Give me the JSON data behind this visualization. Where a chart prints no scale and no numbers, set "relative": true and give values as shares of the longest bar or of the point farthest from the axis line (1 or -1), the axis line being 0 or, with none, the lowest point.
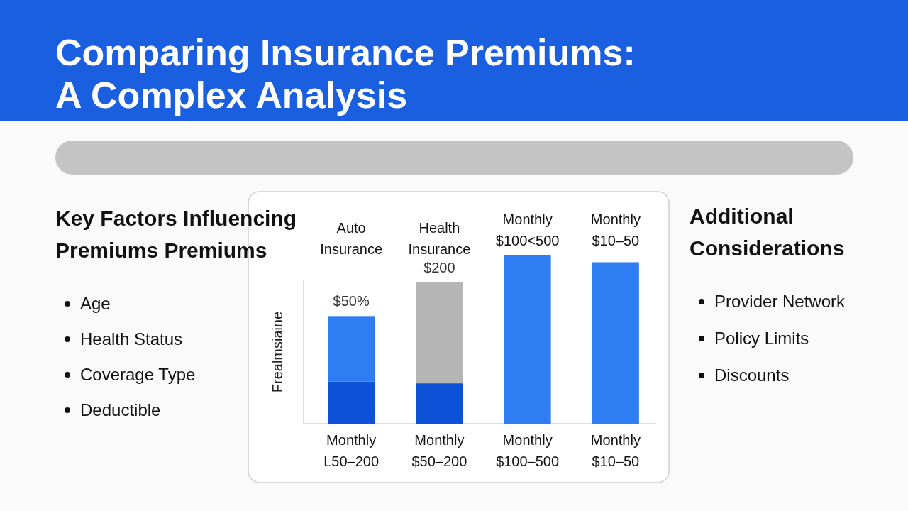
{
  "chart_data": [
    {
      "type": "bar",
      "title": "Comparing Insurance Premiums: A Complex Analysis",
      "ylabel": "Frealmsiaine",
      "stacked": true,
      "relative": true,
      "categories": [
        "Monthly L50–200",
        "Monthly $50–200",
        "Monthly $100–500",
        "Monthly $10–50"
      ],
      "series": [
        {
          "color": "#0d52d6",
          "values": [
            0.25,
            0.24,
            null,
            null
          ]
        },
        {
          "colors": [
            "#2f7df2",
            "#b5b5b5",
            "#2f7df2",
            "#2f7df2"
          ],
          "values": [
            0.39,
            0.6,
            1,
            0.96
          ]
        }
      ],
      "annotations": [
        "Auto Insurance",
        "Health Insurance",
        "Monthly $100<500",
        "Monthly $10–50",
        "$50%",
        "$200"
      ]
    },
    {
      "type": "other",
      "title": "Key Factors Influencing Premiums Premiums",
      "annotations": [
        "Age",
        "Health Status",
        "Coverage Type",
        "Deductible"
      ]
    },
    {
      "type": "other",
      "title": "Additional Considerations",
      "annotations": [
        "Provider Network",
        "Policy Limits",
        "Discounts"
      ]
    }
  ]
}
